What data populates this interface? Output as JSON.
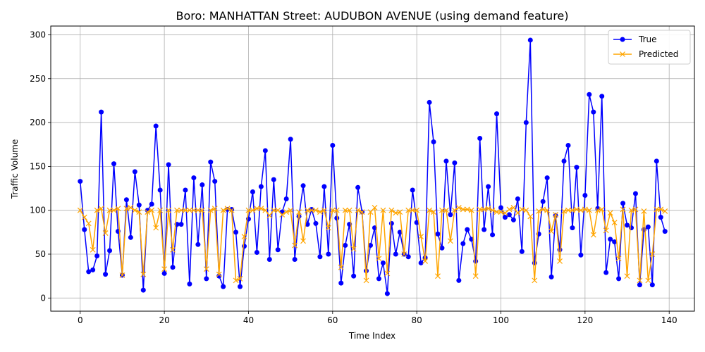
{
  "chart_data": {
    "type": "line",
    "title": "Boro: MANHATTAN Street: AUDUBON AVENUE (using demand feature)",
    "xlabel": "Time Index",
    "ylabel": "Traffic Volume",
    "xlim": [
      -7,
      146
    ],
    "ylim": [
      -15,
      310
    ],
    "xticks": [
      0,
      20,
      40,
      60,
      80,
      100,
      120,
      140
    ],
    "yticks": [
      0,
      50,
      100,
      150,
      200,
      250,
      300
    ],
    "grid": true,
    "legend_position": "upper right",
    "series": [
      {
        "name": "True",
        "color": "#0000ff",
        "marker": "circle",
        "values": [
          133,
          78,
          30,
          32,
          48,
          212,
          27,
          54,
          153,
          76,
          26,
          112,
          69,
          144,
          106,
          9,
          100,
          107,
          196,
          123,
          28,
          152,
          35,
          84,
          84,
          123,
          16,
          137,
          61,
          129,
          22,
          155,
          133,
          25,
          13,
          101,
          101,
          75,
          13,
          59,
          90,
          121,
          52,
          127,
          168,
          44,
          135,
          55,
          98,
          113,
          181,
          44,
          93,
          128,
          84,
          101,
          85,
          47,
          127,
          50,
          174,
          91,
          17,
          60,
          84,
          25,
          126,
          98,
          31,
          60,
          80,
          22,
          40,
          5,
          85,
          50,
          75,
          50,
          47,
          123,
          86,
          40,
          46,
          223,
          178,
          73,
          57,
          156,
          95,
          154,
          20,
          62,
          78,
          67,
          42,
          182,
          78,
          127,
          72,
          210,
          103,
          92,
          95,
          89,
          113,
          53,
          200,
          294,
          40,
          73,
          110,
          137,
          24,
          94,
          55,
          156,
          174,
          80,
          149,
          49,
          117,
          232,
          212,
          102,
          230,
          29,
          67,
          64,
          22,
          108,
          83,
          80,
          119,
          15,
          78,
          81,
          15,
          156,
          92,
          76
        ]
      },
      {
        "name": "Predicted",
        "color": "#ffa500",
        "marker": "x",
        "values": [
          100,
          92,
          85,
          55,
          100,
          102,
          74,
          100,
          100,
          102,
          26,
          102,
          103,
          100,
          98,
          27,
          98,
          100,
          80,
          100,
          33,
          100,
          55,
          100,
          100,
          100,
          100,
          100,
          100,
          100,
          33,
          100,
          102,
          27,
          100,
          102,
          100,
          20,
          22,
          70,
          100,
          100,
          102,
          102,
          100,
          94,
          100,
          100,
          95,
          98,
          100,
          60,
          98,
          65,
          100,
          100,
          100,
          98,
          100,
          80,
          100,
          100,
          35,
          100,
          100,
          56,
          100,
          98,
          20,
          98,
          103,
          45,
          100,
          28,
          100,
          97,
          98,
          50,
          100,
          100,
          100,
          70,
          42,
          100,
          98,
          25,
          100,
          100,
          65,
          100,
          103,
          101,
          101,
          100,
          25,
          101,
          101,
          102,
          100,
          98,
          98,
          97,
          101,
          103,
          97,
          101,
          100,
          93,
          20,
          99,
          101,
          100,
          76,
          95,
          42,
          99,
          100,
          100,
          101,
          100,
          101,
          100,
          72,
          100,
          101,
          77,
          97,
          86,
          45,
          101,
          25,
          100,
          101,
          20,
          99,
          20,
          50,
          101,
          101,
          99
        ]
      }
    ]
  }
}
